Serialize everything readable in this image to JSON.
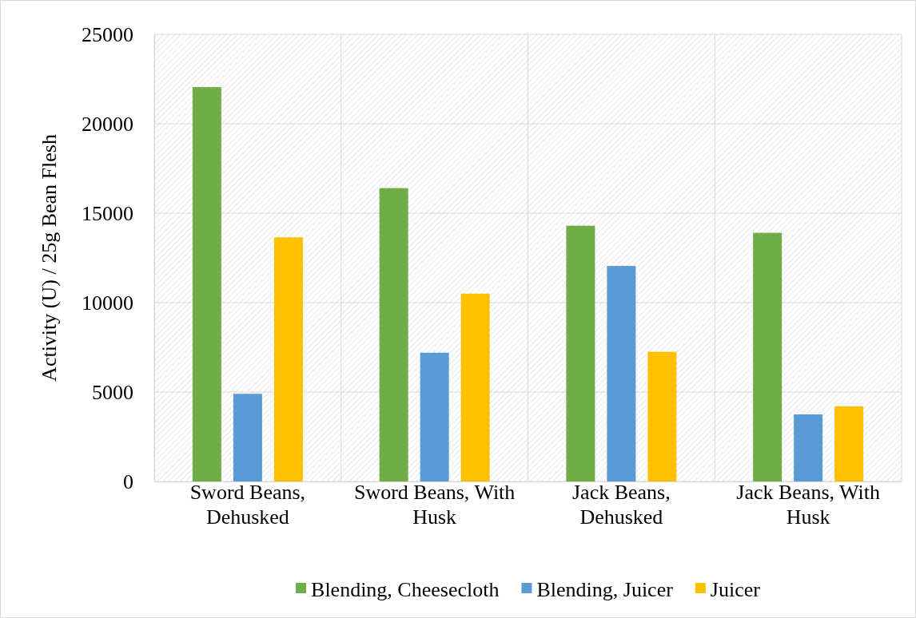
{
  "chart_data": {
    "type": "bar",
    "ylabel": "Activity (U) / 25g Bean Flesh",
    "categories": [
      "Sword Beans, Dehusked",
      "Sword Beans, With Husk",
      "Jack Beans, Dehusked",
      "Jack Beans, With Husk"
    ],
    "series": [
      {
        "name": "Blending, Cheesecloth",
        "color": "#70ad47",
        "values": [
          22050,
          16400,
          14300,
          13900
        ]
      },
      {
        "name": "Blending, Juicer",
        "color": "#5b9bd5",
        "values": [
          4900,
          7200,
          12050,
          3750
        ]
      },
      {
        "name": "Juicer",
        "color": "#ffc000",
        "values": [
          13650,
          10500,
          7250,
          4200
        ]
      }
    ],
    "ylim": [
      0,
      25000
    ],
    "yticks": [
      0,
      5000,
      10000,
      15000,
      20000,
      25000
    ],
    "grid": true,
    "legend": "bottom"
  }
}
